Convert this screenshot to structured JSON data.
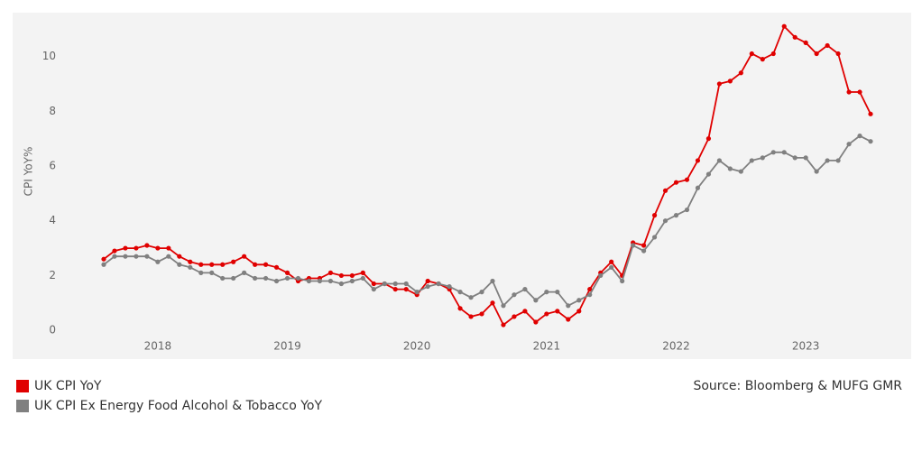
{
  "chart_data": {
    "type": "line",
    "y_label": "CPI YoY%",
    "source": "Source: Bloomberg & MUFG GMR",
    "categories": [
      null,
      null,
      null,
      null,
      null,
      "2018",
      null,
      null,
      null,
      null,
      null,
      null,
      null,
      null,
      null,
      null,
      null,
      "2019",
      null,
      null,
      null,
      null,
      null,
      null,
      null,
      null,
      null,
      null,
      null,
      "2020",
      null,
      null,
      null,
      null,
      null,
      null,
      null,
      null,
      null,
      null,
      null,
      "2021",
      null,
      null,
      null,
      null,
      null,
      null,
      null,
      null,
      null,
      null,
      null,
      "2022",
      null,
      null,
      null,
      null,
      null,
      null,
      null,
      null,
      null,
      null,
      null,
      "2023",
      null,
      null,
      null,
      null,
      null,
      null
    ],
    "series": [
      {
        "name": "UK CPI YoY",
        "color": "#e00000",
        "values": [
          2.6,
          2.9,
          3.0,
          3.0,
          3.1,
          3.0,
          3.0,
          2.7,
          2.5,
          2.4,
          2.4,
          2.4,
          2.5,
          2.7,
          2.4,
          2.4,
          2.3,
          2.1,
          1.8,
          1.9,
          1.9,
          2.1,
          2.0,
          2.0,
          2.1,
          1.7,
          1.7,
          1.5,
          1.5,
          1.3,
          1.8,
          1.7,
          1.5,
          0.8,
          0.5,
          0.6,
          1.0,
          0.2,
          0.5,
          0.7,
          0.3,
          0.6,
          0.7,
          0.4,
          0.7,
          1.5,
          2.1,
          2.5,
          2.0,
          3.2,
          3.1,
          4.2,
          5.1,
          5.4,
          5.5,
          6.2,
          7.0,
          9.0,
          9.1,
          9.4,
          10.1,
          9.9,
          10.1,
          11.1,
          10.7,
          10.5,
          10.1,
          10.4,
          10.1,
          8.7,
          8.7,
          7.9
        ]
      },
      {
        "name": "UK CPI Ex Energy Food Alcohol & Tobacco YoY",
        "color": "#808080",
        "values": [
          2.4,
          2.7,
          2.7,
          2.7,
          2.7,
          2.5,
          2.7,
          2.4,
          2.3,
          2.1,
          2.1,
          1.9,
          1.9,
          2.1,
          1.9,
          1.9,
          1.8,
          1.9,
          1.9,
          1.8,
          1.8,
          1.8,
          1.7,
          1.8,
          1.9,
          1.5,
          1.7,
          1.7,
          1.7,
          1.4,
          1.6,
          1.7,
          1.6,
          1.4,
          1.2,
          1.4,
          1.8,
          0.9,
          1.3,
          1.5,
          1.1,
          1.4,
          1.4,
          0.9,
          1.1,
          1.3,
          2.0,
          2.3,
          1.8,
          3.1,
          2.9,
          3.4,
          4.0,
          4.2,
          4.4,
          5.2,
          5.7,
          6.2,
          5.9,
          5.8,
          6.2,
          6.3,
          6.5,
          6.5,
          6.3,
          6.3,
          5.8,
          6.2,
          6.2,
          6.8,
          7.1,
          6.9
        ]
      }
    ],
    "ylim": [
      -1.05,
      11.6
    ],
    "yticks": [
      0,
      2,
      4,
      6,
      8,
      10
    ],
    "grid": false,
    "legend": "bottom-left"
  }
}
